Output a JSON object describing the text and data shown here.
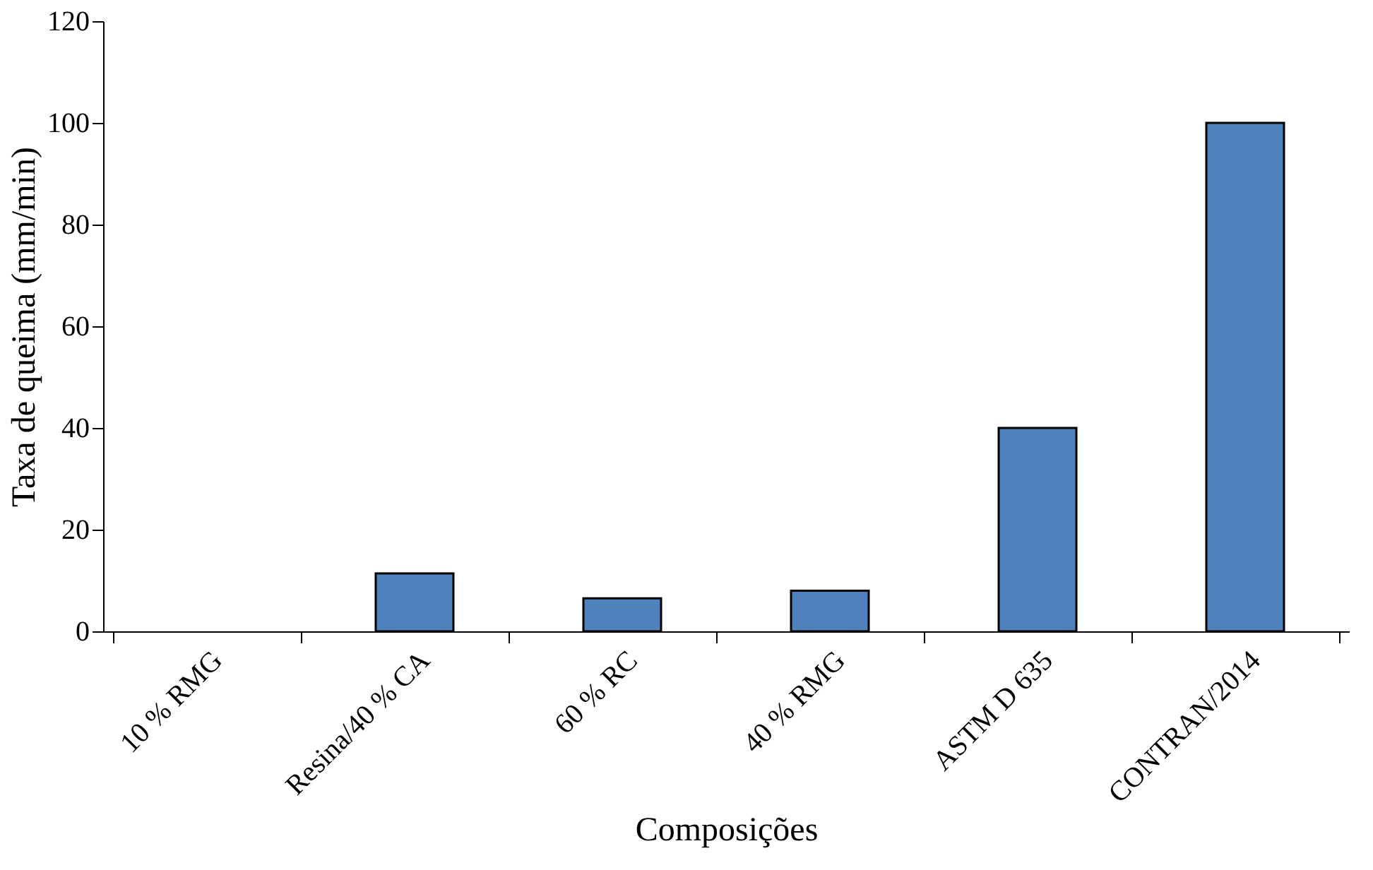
{
  "chart_data": {
    "type": "bar",
    "xlabel": "Composições",
    "ylabel": "Taxa de queima (mm/min)",
    "categories": [
      "10 % RMG",
      "Resina/40 % CA",
      "60 % RC",
      "40 % RMG",
      "ASTM D 635",
      "CONTRAN/2014"
    ],
    "values": [
      null,
      11.4,
      6.5,
      8.0,
      40,
      100
    ],
    "color": "#4f81bd",
    "ylim": [
      0,
      120
    ],
    "yticks": [
      0,
      20,
      40,
      60,
      80,
      100,
      120
    ],
    "grid": false
  }
}
